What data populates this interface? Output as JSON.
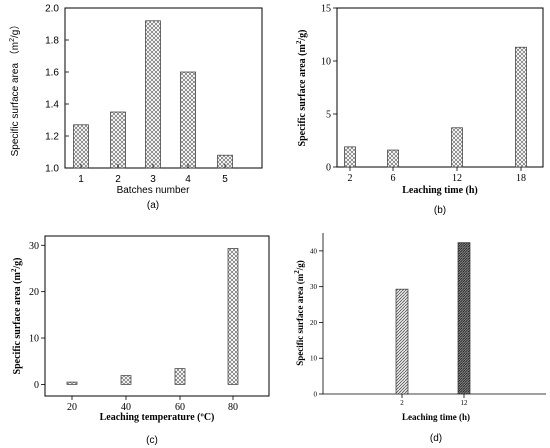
{
  "chart_data": [
    {
      "type": "bar",
      "panel_label": "(a)",
      "font": "sans",
      "categories": [
        "1",
        "2",
        "3",
        "4",
        "5"
      ],
      "values": [
        1.27,
        1.35,
        1.92,
        1.6,
        1.08
      ],
      "xlabel": "Batches number",
      "ylabel": "Specific surface area （m²/g）",
      "ylim": [
        1.0,
        2.0
      ],
      "yticks": [
        "1.0",
        "1.2",
        "1.4",
        "1.6",
        "1.8",
        "2.0"
      ],
      "pattern": "crosshatch",
      "grid": false
    },
    {
      "type": "bar",
      "panel_label": "(b)",
      "font": "serif",
      "categories": [
        "2",
        "6",
        "12",
        "18"
      ],
      "values": [
        1.9,
        1.6,
        3.7,
        11.3
      ],
      "xlabel": "Leaching time (h)",
      "ylabel": "Specific surface area (m²/g)",
      "ylim": [
        0,
        15
      ],
      "yticks": [
        "0",
        "5",
        "10",
        "15"
      ],
      "pattern": "crosshatch",
      "grid": false
    },
    {
      "type": "bar",
      "panel_label": "(c)",
      "font": "serif",
      "categories": [
        "20",
        "40",
        "60",
        "80"
      ],
      "values": [
        0.5,
        1.9,
        3.4,
        29.3
      ],
      "xlabel": "Leaching temperature (ºC)",
      "ylabel": "Specific surface area (m²/g)",
      "ylim": [
        -2.5,
        32
      ],
      "yticks": [
        "0",
        "10",
        "20",
        "30"
      ],
      "pattern": "crosshatch",
      "grid": false
    },
    {
      "type": "bar",
      "panel_label": "(d)",
      "font": "serif",
      "categories": [
        "2",
        "12"
      ],
      "values": [
        29.3,
        42.3
      ],
      "xlabel": "Leaching time (h)",
      "ylabel": "Specific surface area (m²/g)",
      "ylim": [
        0,
        45
      ],
      "yticks": [
        "0",
        "10",
        "20",
        "30",
        "40"
      ],
      "pattern": "diagonal",
      "grid": false
    }
  ]
}
